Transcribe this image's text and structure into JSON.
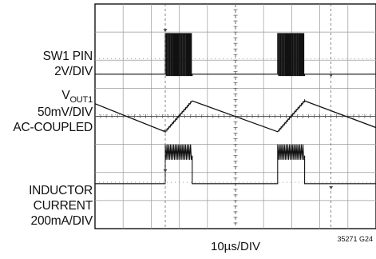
{
  "chart_data": {
    "type": "line",
    "title": "",
    "xlabel": "10µs/DIV",
    "divisions": {
      "x": 10,
      "y": 8
    },
    "grid": true,
    "x_unit": "µs",
    "xlim_us": [
      0,
      100
    ],
    "series": [
      {
        "id": "sw1",
        "name": "SW1 PIN",
        "scale": "2V/DIV",
        "description_values": "switching bursts between low and high level",
        "bursts_us": [
          [
            25.0,
            34.6
          ],
          [
            65.0,
            74.6
          ]
        ],
        "low_level_div": -0.1,
        "high_level_div": 1.35,
        "pulse_period_us": 0.6
      },
      {
        "id": "vout1",
        "name_main": "V",
        "name_sub": "OUT1",
        "scale": "50mV/DIV",
        "coupling": "AC-COUPLED",
        "shape": "sawtooth",
        "x": [
          0,
          25.0,
          34.6,
          65.0,
          74.6,
          100
        ],
        "y_div": [
          0.45,
          -0.55,
          0.55,
          -0.55,
          0.55,
          -0.4
        ]
      },
      {
        "id": "inductor",
        "name_line1": "INDUCTOR",
        "name_line2": "CURRENT",
        "scale": "200mA/DIV",
        "bursts_us": [
          [
            25.0,
            34.6
          ],
          [
            65.0,
            74.6
          ]
        ],
        "idle_level_div": 0,
        "burst_avg_div": 1.0,
        "burst_peak_div": 1.4,
        "ripple_period_us": 0.6
      }
    ],
    "figure_id": "35271 G24"
  }
}
